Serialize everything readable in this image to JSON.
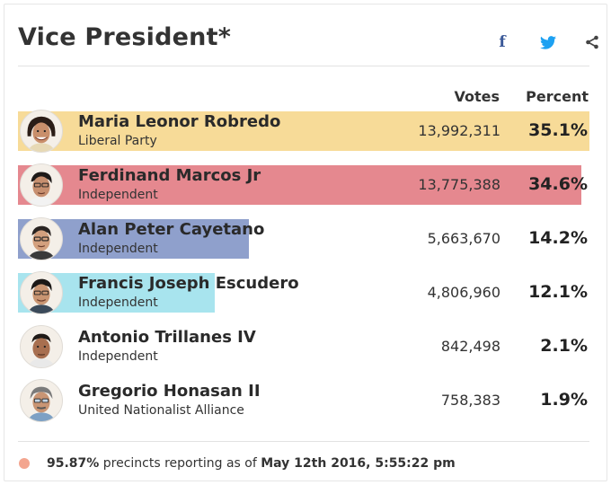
{
  "header": {
    "title": "Vice President*",
    "share_icons": [
      "facebook-icon",
      "twitter-icon",
      "share-icon"
    ],
    "facebook_glyph": "f"
  },
  "columns": {
    "votes": "Votes",
    "percent": "Percent"
  },
  "candidates": [
    {
      "name": "Maria Leonor Robredo",
      "party": "Liberal Party",
      "votes": "13,992,311",
      "percent": "35.1%",
      "share": 0.351,
      "color": "#f7db98"
    },
    {
      "name": "Ferdinand Marcos Jr",
      "party": "Independent",
      "votes": "13,775,388",
      "percent": "34.6%",
      "share": 0.346,
      "color": "#e5888f"
    },
    {
      "name": "Alan Peter Cayetano",
      "party": "Independent",
      "votes": "5,663,670",
      "percent": "14.2%",
      "share": 0.142,
      "color": "#8fa0cc"
    },
    {
      "name": "Francis Joseph Escudero",
      "party": "Independent",
      "votes": "4,806,960",
      "percent": "12.1%",
      "share": 0.121,
      "color": "#a8e4ee"
    },
    {
      "name": "Antonio Trillanes IV",
      "party": "Independent",
      "votes": "842,498",
      "percent": "2.1%",
      "share": 0.021,
      "color": "#d9d9d9"
    },
    {
      "name": "Gregorio Honasan II",
      "party": "United Nationalist Alliance",
      "votes": "758,383",
      "percent": "1.9%",
      "share": 0.019,
      "color": "#d9d9d9"
    }
  ],
  "footer": {
    "percent": "95.87%",
    "text": "precincts reporting as of",
    "timestamp": "May 12th 2016, 5:55:22 pm",
    "dot_color": "#f3a58f"
  }
}
